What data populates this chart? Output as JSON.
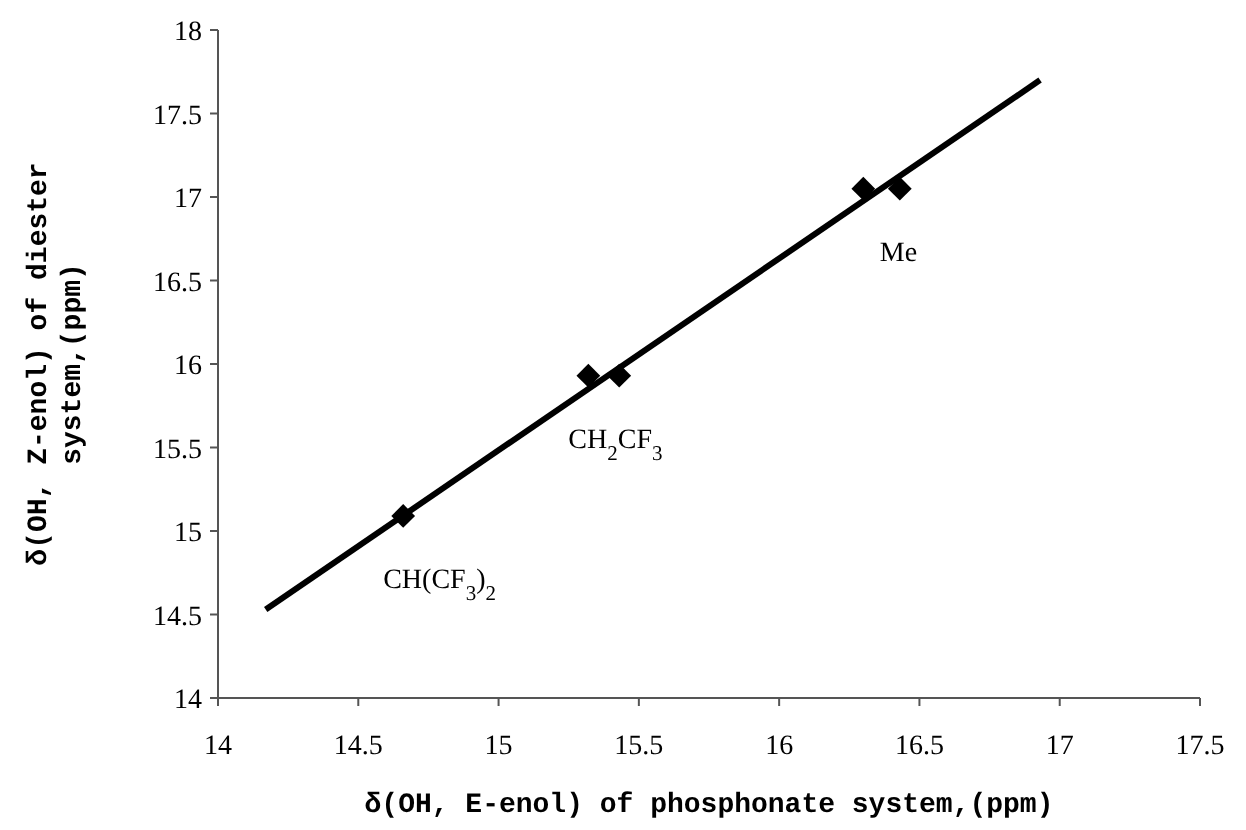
{
  "chart_data": {
    "type": "scatter",
    "xlabel": "δ(OH, E-enol) of phosphonate system,(ppm)",
    "ylabel": "δ(OH, Z-enol) of diester system,(ppm)",
    "xlim": [
      14,
      17.5
    ],
    "xticks": [
      14,
      14.5,
      15,
      15.5,
      16,
      16.5,
      17,
      17.5
    ],
    "ylim": [
      14,
      18
    ],
    "yticks": [
      14,
      14.5,
      15,
      15.5,
      16,
      16.5,
      17,
      17.5,
      18
    ],
    "grid": false,
    "series": [
      {
        "marker": "diamond",
        "color": "#000000",
        "x": [
          14.66,
          15.32,
          15.43,
          16.3,
          16.43
        ],
        "values": [
          15.09,
          15.93,
          15.93,
          17.05,
          17.05
        ]
      },
      {
        "type": "line",
        "color": "#000000",
        "x": [
          14.17,
          16.93
        ],
        "values": [
          14.53,
          17.7
        ]
      }
    ],
    "annotations": [
      {
        "text": "CH(CF$_{3}$)$_{2}$",
        "x": 14.66,
        "y": 15.09
      },
      {
        "text": "CH$_{2}$CF$_{3}$",
        "x": 15.32,
        "y": 15.93
      },
      {
        "text": "Me",
        "x": 16.43,
        "y": 17.05
      }
    ]
  }
}
